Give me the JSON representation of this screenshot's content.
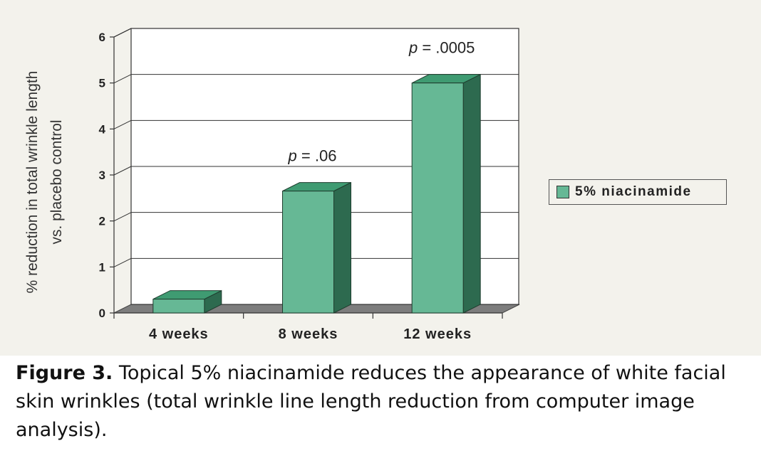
{
  "chart_data": {
    "type": "bar",
    "categories": [
      "4 weeks",
      "8 weeks",
      "12 weeks"
    ],
    "series": [
      {
        "name": "5% niacinamide",
        "values": [
          0.3,
          2.65,
          5.0
        ]
      }
    ],
    "annotations": [
      "",
      "p = .06",
      "p = .0005"
    ],
    "ylabel_lines": [
      "% reduction in total wrinkle length",
      "vs. placebo control"
    ],
    "ylim": [
      0,
      6
    ],
    "yticks": [
      0,
      1,
      2,
      3,
      4,
      5,
      6
    ],
    "grid": true,
    "legend_position": "right",
    "colors": {
      "front": "#66b895",
      "top": "#3f9b72",
      "side": "#2d6a4f"
    }
  },
  "caption": {
    "label": "Figure 3.",
    "text": " Topical 5% niacinamide reduces the appearance of white facial skin wrinkles (total wrinkle line length reduction from computer image analysis)."
  }
}
